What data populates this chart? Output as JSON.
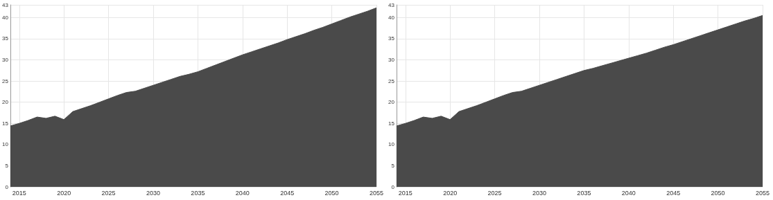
{
  "chart_data": [
    {
      "type": "area",
      "x": [
        2014,
        2015,
        2016,
        2017,
        2018,
        2019,
        2020,
        2021,
        2022,
        2023,
        2024,
        2025,
        2026,
        2027,
        2028,
        2029,
        2030,
        2031,
        2032,
        2033,
        2034,
        2035,
        2036,
        2037,
        2038,
        2039,
        2040,
        2041,
        2042,
        2043,
        2044,
        2045,
        2046,
        2047,
        2048,
        2049,
        2050,
        2051,
        2052,
        2053,
        2054,
        2055
      ],
      "series": [
        {
          "color": "#4a4a4a",
          "values": [
            14.4,
            15,
            15.7,
            16.5,
            16.2,
            16.7,
            15.9,
            17.8,
            18.5,
            19.2,
            20,
            20.8,
            21.6,
            22.3,
            22.6,
            23.3,
            24,
            24.7,
            25.4,
            26.1,
            26.6,
            27.2,
            28,
            28.8,
            29.6,
            30.4,
            31.2,
            31.9,
            32.6,
            33.3,
            34,
            34.8,
            35.5,
            36.2,
            37,
            37.7,
            38.5,
            39.3,
            40.1,
            40.8,
            41.5,
            42.3
          ]
        }
      ],
      "xlim": [
        2014,
        2055
      ],
      "xticks": [
        2015,
        2020,
        2025,
        2030,
        2035,
        2040,
        2045,
        2050,
        2055
      ],
      "ylim": [
        0,
        43
      ],
      "yticks": [
        0,
        5,
        10,
        15,
        20,
        25,
        30,
        35,
        40,
        43
      ],
      "grid": true
    },
    {
      "type": "area",
      "x": [
        2014,
        2015,
        2016,
        2017,
        2018,
        2019,
        2020,
        2021,
        2022,
        2023,
        2024,
        2025,
        2026,
        2027,
        2028,
        2029,
        2030,
        2031,
        2032,
        2033,
        2034,
        2035,
        2036,
        2037,
        2038,
        2039,
        2040,
        2041,
        2042,
        2043,
        2044,
        2045,
        2046,
        2047,
        2048,
        2049,
        2050,
        2051,
        2052,
        2053,
        2054,
        2055
      ],
      "series": [
        {
          "color": "#4a4a4a",
          "values": [
            14.4,
            15,
            15.7,
            16.5,
            16.2,
            16.7,
            15.9,
            17.8,
            18.5,
            19.2,
            20,
            20.8,
            21.6,
            22.3,
            22.6,
            23.3,
            24,
            24.7,
            25.4,
            26.1,
            26.8,
            27.5,
            28,
            28.6,
            29.2,
            29.8,
            30.4,
            31,
            31.6,
            32.3,
            33,
            33.6,
            34.3,
            35,
            35.7,
            36.4,
            37.1,
            37.8,
            38.5,
            39.2,
            39.8,
            40.5
          ]
        }
      ],
      "xlim": [
        2014,
        2055
      ],
      "xticks": [
        2015,
        2020,
        2025,
        2030,
        2035,
        2040,
        2045,
        2050,
        2055
      ],
      "ylim": [
        0,
        43
      ],
      "yticks": [
        0,
        5,
        10,
        15,
        20,
        25,
        30,
        35,
        40,
        43
      ],
      "grid": true
    }
  ]
}
